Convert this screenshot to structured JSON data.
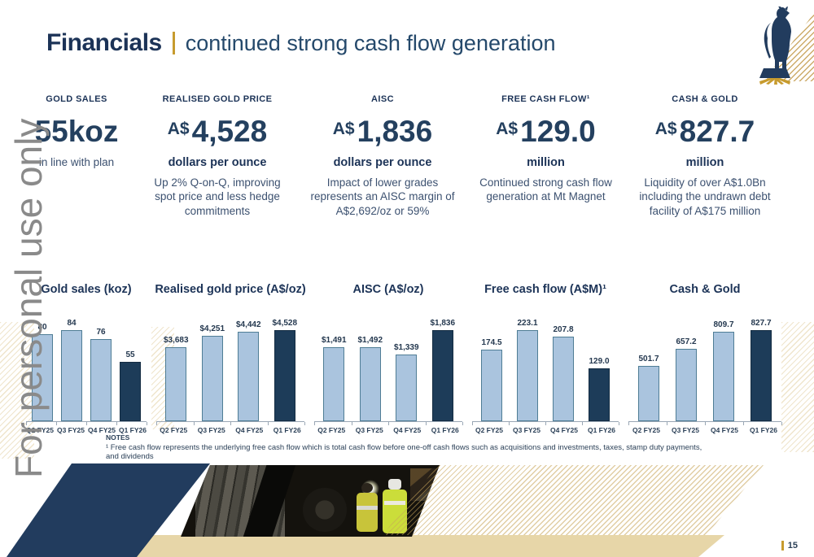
{
  "header": {
    "title": "Financials",
    "subtitle": "continued strong cash flow generation"
  },
  "watermark": "For personal use only",
  "logo_icon": "horse-on-pedestal-logo",
  "colors": {
    "navy": "#1c3357",
    "navy_shape": "#223c5e",
    "value_navy": "#24405f",
    "gold_accent": "#c79b2e",
    "gold_band": "#e7d6a8",
    "bar_light": "#aac4de",
    "bar_light_border": "#4f7d95",
    "bar_dark": "#1d3c59",
    "watermark_gray": "#8a8a8a"
  },
  "metrics": [
    {
      "label": "GOLD SALES",
      "prefix": "",
      "value": "55koz",
      "sublabel": "",
      "description": "in line with plan"
    },
    {
      "label": "REALISED GOLD PRICE",
      "prefix": "A$",
      "value": "4,528",
      "sublabel": "dollars per ounce",
      "description": "Up 2% Q-on-Q, improving spot price and less hedge commitments"
    },
    {
      "label": "AISC",
      "prefix": "A$",
      "value": "1,836",
      "sublabel": "dollars per ounce",
      "description": "Impact of lower grades represents an AISC margin of A$2,692/oz or 59%"
    },
    {
      "label": "FREE CASH FLOW¹",
      "prefix": "A$",
      "value": "129.0",
      "sublabel": "million",
      "description": "Continued strong cash flow generation at Mt Magnet"
    },
    {
      "label": "CASH & GOLD",
      "prefix": "A$",
      "value": "827.7",
      "sublabel": "million",
      "description": "Liquidity of over A$1.0Bn including the undrawn debt facility of A$175 million"
    }
  ],
  "chart_data": [
    {
      "type": "bar",
      "title": "Gold sales (koz)",
      "categories": [
        "Q2 FY25",
        "Q3 FY25",
        "Q4 FY25",
        "Q1 FY26"
      ],
      "values": [
        80,
        84,
        76,
        55
      ],
      "labels": [
        "80",
        "84",
        "76",
        "55"
      ],
      "highlight_index": 3,
      "xlabel": "",
      "ylabel": "",
      "ylim": [
        0,
        84
      ],
      "grid": false,
      "legend": "none"
    },
    {
      "type": "bar",
      "title": "Realised gold price (A$/oz)",
      "categories": [
        "Q2 FY25",
        "Q3 FY25",
        "Q4 FY25",
        "Q1 FY26"
      ],
      "values": [
        3683,
        4251,
        4442,
        4528
      ],
      "labels": [
        "$3,683",
        "$4,251",
        "$4,442",
        "$4,528"
      ],
      "highlight_index": 3,
      "xlabel": "",
      "ylabel": "",
      "ylim": [
        0,
        4528
      ],
      "grid": false,
      "legend": "none"
    },
    {
      "type": "bar",
      "title": "AISC (A$/oz)",
      "categories": [
        "Q2 FY25",
        "Q3 FY25",
        "Q4 FY25",
        "Q1 FY26"
      ],
      "values": [
        1491,
        1492,
        1339,
        1836
      ],
      "labels": [
        "$1,491",
        "$1,492",
        "$1,339",
        "$1,836"
      ],
      "highlight_index": 3,
      "xlabel": "",
      "ylabel": "",
      "ylim": [
        0,
        1836
      ],
      "grid": false,
      "legend": "none"
    },
    {
      "type": "bar",
      "title": "Free cash flow (A$M)¹",
      "categories": [
        "Q2 FY25",
        "Q3 FY25",
        "Q4 FY25",
        "Q1 FY26"
      ],
      "values": [
        174.5,
        223.1,
        207.8,
        129.0
      ],
      "labels": [
        "174.5",
        "223.1",
        "207.8",
        "129.0"
      ],
      "highlight_index": 3,
      "xlabel": "",
      "ylabel": "",
      "ylim": [
        0,
        223.1
      ],
      "grid": false,
      "legend": "none"
    },
    {
      "type": "bar",
      "title": "Cash & Gold",
      "categories": [
        "Q2 FY25",
        "Q3 FY25",
        "Q4 FY25",
        "Q1 FY26"
      ],
      "values": [
        501.7,
        657.2,
        809.7,
        827.7
      ],
      "labels": [
        "501.7",
        "657.2",
        "809.7",
        "827.7"
      ],
      "highlight_index": 3,
      "xlabel": "",
      "ylabel": "",
      "ylim": [
        0,
        827.7
      ],
      "grid": false,
      "legend": "none"
    }
  ],
  "notes": {
    "heading": "NOTES",
    "body": "¹ Free cash flow represents the underlying free cash flow which is total cash flow before one-off cash flows such as acquisitions and investments, taxes, stamp duty payments, and dividends"
  },
  "footer": {
    "page_number": "15"
  }
}
